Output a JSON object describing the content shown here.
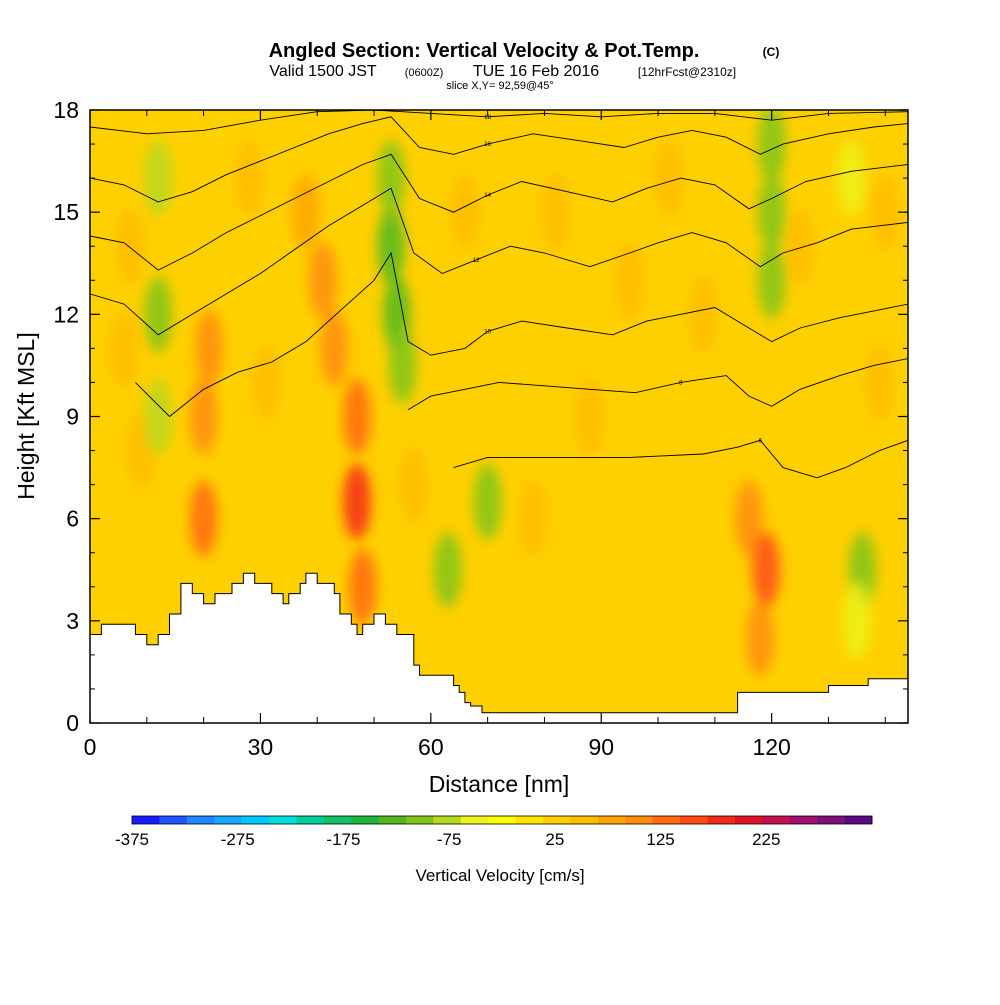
{
  "title": {
    "main": "Angled Section: Vertical Velocity & Pot.Temp.",
    "unit_tag": "(C)",
    "valid_prefix": "Valid 1500 JST",
    "valid_zulu": "(0600Z)",
    "valid_date": "TUE 16 Feb 2016",
    "forecast_tag": "[12hrFcst@2310z]",
    "slice": "slice X,Y= 92,59@45°"
  },
  "chart_data": {
    "type": "heatmap",
    "xlabel": "Distance [nm]",
    "ylabel": "Height [Kft MSL]",
    "xlim": [
      0,
      144
    ],
    "ylim": [
      0,
      18
    ],
    "x_ticks": [
      0,
      30,
      60,
      90,
      120
    ],
    "y_ticks": [
      0,
      3,
      6,
      9,
      12,
      15,
      18
    ],
    "colorbar": {
      "label": "Vertical Velocity [cm/s]",
      "range": [
        -375,
        325
      ],
      "tick_values": [
        -375,
        -275,
        -175,
        -75,
        25,
        125,
        225
      ],
      "tick_labels": [
        "-375",
        "-275",
        "-175",
        "-75",
        "25",
        "125",
        "225"
      ],
      "colors": [
        "#1a1aff",
        "#1f55ff",
        "#1f85ff",
        "#16aaff",
        "#00c8ff",
        "#00dede",
        "#00d09a",
        "#12c268",
        "#1db43c",
        "#52b81e",
        "#80c41a",
        "#b8d81c",
        "#ecf21a",
        "#ffff00",
        "#ffe400",
        "#ffd000",
        "#ffbc00",
        "#ffa400",
        "#ff8c0a",
        "#ff6a10",
        "#ff4a14",
        "#f42a18",
        "#e01228",
        "#c41050",
        "#a0106e",
        "#801078",
        "#5a0a80"
      ]
    },
    "background_color": "#ffd000",
    "terrain": {
      "distance_nm": [
        0,
        2,
        2,
        8,
        8,
        10,
        10,
        12,
        12,
        14,
        14,
        16,
        16,
        18,
        18,
        20,
        20,
        22,
        22,
        25,
        25,
        27,
        27,
        29,
        29,
        32,
        32,
        34,
        34,
        35,
        35,
        37,
        37,
        38,
        38,
        40,
        40,
        43,
        43,
        44,
        44,
        46,
        46,
        47,
        47,
        48,
        48,
        50,
        50,
        51,
        51,
        52,
        52,
        53,
        53,
        54,
        54,
        57,
        57,
        58,
        58,
        59,
        59,
        64,
        64,
        65,
        65,
        66,
        66,
        67,
        67,
        68,
        68,
        69,
        69,
        70,
        70,
        76,
        76,
        114,
        114,
        130,
        130,
        137,
        137,
        144
      ],
      "height_kft": [
        2.6,
        2.6,
        2.9,
        2.9,
        2.6,
        2.6,
        2.3,
        2.3,
        2.6,
        2.6,
        3.2,
        3.2,
        4.1,
        4.1,
        3.8,
        3.8,
        3.5,
        3.5,
        3.8,
        3.8,
        4.1,
        4.1,
        4.4,
        4.4,
        4.1,
        4.1,
        3.8,
        3.8,
        3.5,
        3.5,
        3.8,
        3.8,
        4.1,
        4.1,
        4.4,
        4.4,
        4.1,
        4.1,
        3.8,
        3.8,
        3.2,
        3.2,
        2.9,
        2.9,
        2.6,
        2.6,
        2.9,
        2.9,
        3.2,
        3.2,
        3.2,
        3.2,
        2.9,
        2.9,
        2.9,
        2.9,
        2.6,
        2.6,
        1.7,
        1.7,
        1.4,
        1.4,
        1.4,
        1.4,
        1.1,
        1.1,
        0.9,
        0.9,
        0.6,
        0.6,
        0.5,
        0.5,
        0.5,
        0.5,
        0.3,
        0.3,
        0.3,
        0.3,
        0.3,
        0.3,
        0.9,
        0.9,
        1.1,
        1.1,
        1.3,
        1.3
      ]
    },
    "velocity_cells": [
      {
        "x": 6,
        "y": 11,
        "v": 60
      },
      {
        "x": 7,
        "y": 14,
        "v": 60
      },
      {
        "x": 9,
        "y": 8,
        "v": 45
      },
      {
        "x": 12,
        "y": 12,
        "v": -90
      },
      {
        "x": 12,
        "y": 16,
        "v": -80
      },
      {
        "x": 12,
        "y": 9,
        "v": -80
      },
      {
        "x": 20,
        "y": 6,
        "v": 140
      },
      {
        "x": 20,
        "y": 9,
        "v": 110
      },
      {
        "x": 21,
        "y": 11,
        "v": 100
      },
      {
        "x": 28,
        "y": 16,
        "v": 55
      },
      {
        "x": 31,
        "y": 10,
        "v": 45
      },
      {
        "x": 41,
        "y": 13,
        "v": 110
      },
      {
        "x": 43,
        "y": 11,
        "v": 95
      },
      {
        "x": 38,
        "y": 15,
        "v": 70
      },
      {
        "x": 47,
        "y": 6.5,
        "v": 175
      },
      {
        "x": 47,
        "y": 9,
        "v": 130
      },
      {
        "x": 48,
        "y": 4,
        "v": 120
      },
      {
        "x": 53,
        "y": 14,
        "v": -130
      },
      {
        "x": 54,
        "y": 12,
        "v": -140
      },
      {
        "x": 53,
        "y": 16,
        "v": -110
      },
      {
        "x": 55,
        "y": 10.5,
        "v": -90
      },
      {
        "x": 57,
        "y": 7,
        "v": 45
      },
      {
        "x": 63,
        "y": 4.5,
        "v": -90
      },
      {
        "x": 70,
        "y": 6.5,
        "v": -90
      },
      {
        "x": 66,
        "y": 15,
        "v": 60
      },
      {
        "x": 82,
        "y": 15,
        "v": 55
      },
      {
        "x": 95,
        "y": 13,
        "v": 55
      },
      {
        "x": 102,
        "y": 16,
        "v": 60
      },
      {
        "x": 108,
        "y": 12,
        "v": 45
      },
      {
        "x": 88,
        "y": 9,
        "v": 40
      },
      {
        "x": 78,
        "y": 6,
        "v": 45
      },
      {
        "x": 116,
        "y": 6,
        "v": 100
      },
      {
        "x": 119,
        "y": 4.5,
        "v": 150
      },
      {
        "x": 118,
        "y": 2.5,
        "v": 100
      },
      {
        "x": 120,
        "y": 15,
        "v": -100
      },
      {
        "x": 120,
        "y": 13,
        "v": -90
      },
      {
        "x": 120,
        "y": 17,
        "v": -90
      },
      {
        "x": 125,
        "y": 14,
        "v": 60
      },
      {
        "x": 140,
        "y": 15,
        "v": 60
      },
      {
        "x": 134,
        "y": 16,
        "v": -60
      },
      {
        "x": 136,
        "y": 4.5,
        "v": -90
      },
      {
        "x": 135,
        "y": 3,
        "v": -50
      },
      {
        "x": 139,
        "y": 10,
        "v": 40
      }
    ],
    "theta_contours": [
      {
        "label": "6",
        "pts": [
          [
            64,
            7.5
          ],
          [
            70,
            7.8
          ],
          [
            80,
            7.8
          ],
          [
            95,
            7.8
          ],
          [
            108,
            7.9
          ],
          [
            114,
            8.1
          ],
          [
            118,
            8.3
          ],
          [
            122,
            7.5
          ],
          [
            128,
            7.2
          ],
          [
            133,
            7.5
          ],
          [
            139,
            8.0
          ],
          [
            144,
            8.3
          ]
        ]
      },
      {
        "label": "8",
        "pts": [
          [
            56,
            9.2
          ],
          [
            60,
            9.6
          ],
          [
            66,
            9.8
          ],
          [
            72,
            10.0
          ],
          [
            80,
            9.9
          ],
          [
            88,
            9.8
          ],
          [
            96,
            9.7
          ],
          [
            104,
            10.0
          ],
          [
            112,
            10.2
          ],
          [
            116,
            9.6
          ],
          [
            120,
            9.3
          ],
          [
            125,
            9.8
          ],
          [
            132,
            10.2
          ],
          [
            138,
            10.5
          ],
          [
            144,
            10.7
          ]
        ]
      },
      {
        "label": "10",
        "pts": [
          [
            8,
            10.0
          ],
          [
            14,
            9.0
          ],
          [
            20,
            9.8
          ],
          [
            26,
            10.3
          ],
          [
            32,
            10.6
          ],
          [
            38,
            11.2
          ],
          [
            44,
            12.1
          ],
          [
            50,
            13.0
          ],
          [
            53,
            13.8
          ],
          [
            56,
            11.2
          ],
          [
            60,
            10.8
          ],
          [
            66,
            11.0
          ],
          [
            70,
            11.5
          ],
          [
            76,
            11.8
          ],
          [
            84,
            11.6
          ],
          [
            92,
            11.4
          ],
          [
            98,
            11.8
          ],
          [
            104,
            12.0
          ],
          [
            110,
            12.2
          ],
          [
            116,
            11.6
          ],
          [
            120,
            11.2
          ],
          [
            125,
            11.6
          ],
          [
            132,
            11.9
          ],
          [
            138,
            12.1
          ],
          [
            144,
            12.3
          ]
        ]
      },
      {
        "label": "12",
        "pts": [
          [
            0,
            12.6
          ],
          [
            6,
            12.3
          ],
          [
            12,
            11.4
          ],
          [
            18,
            12.0
          ],
          [
            24,
            12.6
          ],
          [
            30,
            13.2
          ],
          [
            36,
            13.9
          ],
          [
            42,
            14.6
          ],
          [
            48,
            15.2
          ],
          [
            53,
            15.7
          ],
          [
            57,
            13.8
          ],
          [
            62,
            13.2
          ],
          [
            68,
            13.6
          ],
          [
            74,
            14.0
          ],
          [
            80,
            13.8
          ],
          [
            88,
            13.4
          ],
          [
            95,
            13.8
          ],
          [
            100,
            14.1
          ],
          [
            106,
            14.4
          ],
          [
            112,
            14.1
          ],
          [
            118,
            13.4
          ],
          [
            122,
            13.8
          ],
          [
            128,
            14.1
          ],
          [
            134,
            14.5
          ],
          [
            144,
            14.7
          ]
        ]
      },
      {
        "label": "14",
        "pts": [
          [
            0,
            14.3
          ],
          [
            6,
            14.1
          ],
          [
            12,
            13.3
          ],
          [
            18,
            13.8
          ],
          [
            24,
            14.4
          ],
          [
            30,
            14.9
          ],
          [
            36,
            15.4
          ],
          [
            42,
            15.9
          ],
          [
            48,
            16.4
          ],
          [
            53,
            16.7
          ],
          [
            58,
            15.4
          ],
          [
            64,
            15.0
          ],
          [
            70,
            15.5
          ],
          [
            76,
            15.9
          ],
          [
            84,
            15.6
          ],
          [
            92,
            15.3
          ],
          [
            98,
            15.7
          ],
          [
            104,
            16.0
          ],
          [
            110,
            15.8
          ],
          [
            116,
            15.1
          ],
          [
            120,
            15.4
          ],
          [
            126,
            15.9
          ],
          [
            134,
            16.2
          ],
          [
            144,
            16.4
          ]
        ]
      },
      {
        "label": "16",
        "pts": [
          [
            0,
            16.0
          ],
          [
            6,
            15.8
          ],
          [
            12,
            15.3
          ],
          [
            18,
            15.6
          ],
          [
            24,
            16.1
          ],
          [
            30,
            16.5
          ],
          [
            36,
            16.9
          ],
          [
            42,
            17.3
          ],
          [
            48,
            17.6
          ],
          [
            53,
            17.8
          ],
          [
            58,
            16.9
          ],
          [
            64,
            16.7
          ],
          [
            70,
            17.0
          ],
          [
            78,
            17.3
          ],
          [
            86,
            17.1
          ],
          [
            94,
            16.9
          ],
          [
            100,
            17.2
          ],
          [
            106,
            17.4
          ],
          [
            112,
            17.2
          ],
          [
            118,
            16.7
          ],
          [
            122,
            17.0
          ],
          [
            130,
            17.3
          ],
          [
            138,
            17.5
          ],
          [
            144,
            17.6
          ]
        ]
      },
      {
        "label": "18",
        "pts": [
          [
            0,
            17.5
          ],
          [
            10,
            17.3
          ],
          [
            20,
            17.4
          ],
          [
            30,
            17.7
          ],
          [
            40,
            17.95
          ],
          [
            50,
            18.0
          ],
          [
            60,
            17.9
          ],
          [
            70,
            17.8
          ],
          [
            80,
            17.9
          ],
          [
            90,
            17.8
          ],
          [
            100,
            17.9
          ],
          [
            110,
            17.9
          ],
          [
            120,
            17.7
          ],
          [
            130,
            17.9
          ],
          [
            144,
            17.95
          ]
        ]
      }
    ]
  }
}
